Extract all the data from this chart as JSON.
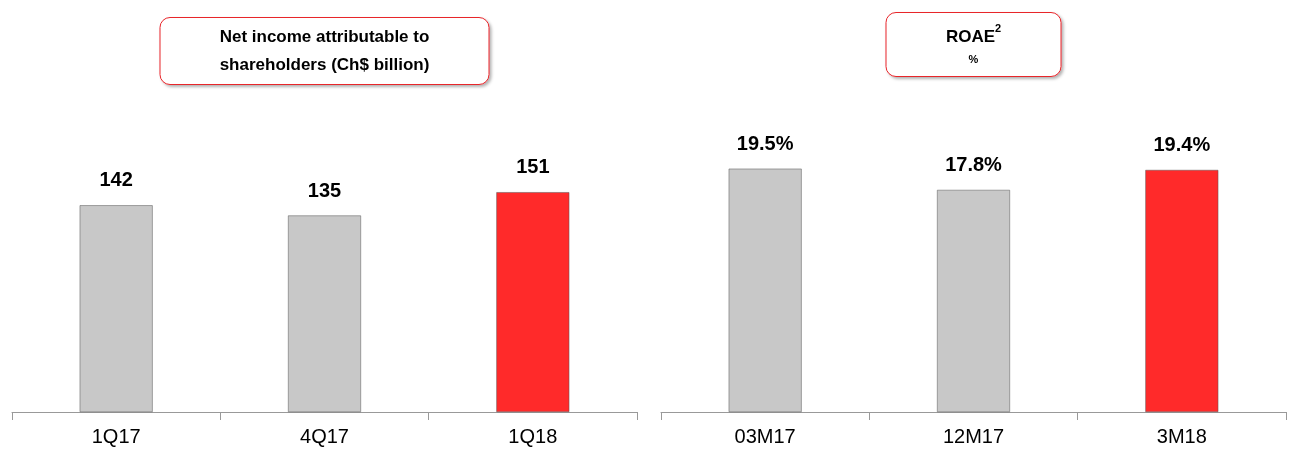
{
  "chart_data": [
    {
      "type": "bar",
      "title": "Net income attributable to\nshareholders (Ch$ billion)",
      "categories": [
        "1Q17",
        "4Q17",
        "1Q18"
      ],
      "values": [
        142,
        135,
        151
      ],
      "colors": [
        "#c8c8c8",
        "#c8c8c8",
        "#ff2a2a"
      ],
      "data_labels": true
    },
    {
      "type": "bar",
      "title": "ROAE$^{2}$",
      "subtitle": "%",
      "categories": [
        "03M17",
        "12M17",
        "3M18"
      ],
      "values": [
        19.5,
        17.8,
        19.4
      ],
      "colors": [
        "#c8c8c8",
        "#c8c8c8",
        "#ff2a2a"
      ],
      "value_labels": [
        "19.5%",
        "17.8%",
        "19.4%"
      ]
    }
  ]
}
